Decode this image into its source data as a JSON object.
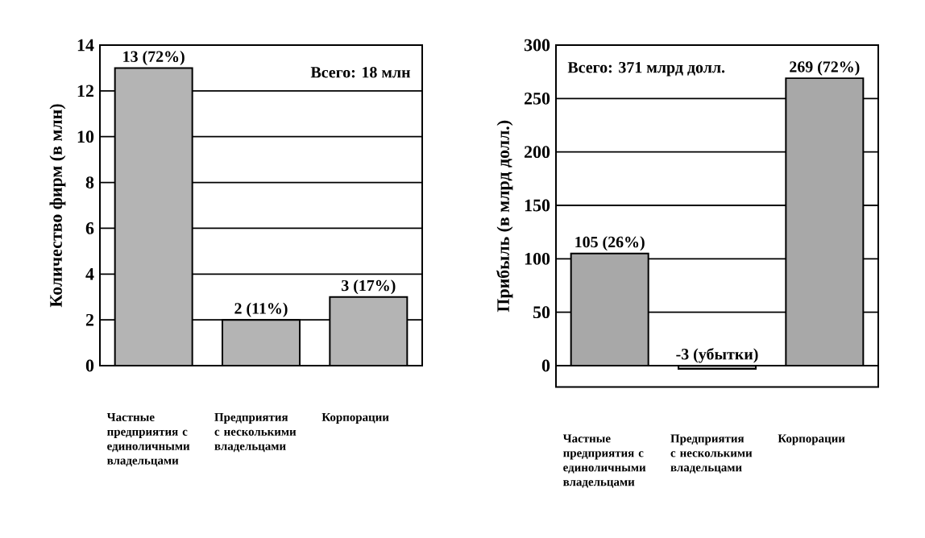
{
  "chart_data": [
    {
      "type": "bar",
      "ylabel": "Количество фирм (в млн)",
      "categories": [
        "Частные предприятия с единоличными владельцами",
        "Предприятия с несколькими владельцами",
        "Корпорации"
      ],
      "values": [
        13,
        2,
        3
      ],
      "value_labels": [
        "13 (72%)",
        "2 (11%)",
        "3 (17%)"
      ],
      "color": "#b4b4b4",
      "ylim": [
        0,
        14
      ],
      "yticks": [
        0,
        2,
        4,
        6,
        8,
        10,
        12,
        14
      ],
      "grid": "y",
      "annotations": [
        "Всего: 18 млн"
      ]
    },
    {
      "type": "bar",
      "ylabel": "Прибыль (в млрд долл.)",
      "categories": [
        "Частные предприятия с единоличными владельцами",
        "Предприятия с несколькими владельцами",
        "Корпорации"
      ],
      "values": [
        105,
        -3,
        269
      ],
      "value_labels": [
        "105 (26%)",
        "-3 (убытки)",
        "269 (72%)"
      ],
      "color": "#a8a8a8",
      "ylim": [
        -20,
        300
      ],
      "yticks": [
        0,
        50,
        100,
        150,
        200,
        250,
        300
      ],
      "grid": "y",
      "annotations": [
        "Всего: 371 млрд долл."
      ]
    }
  ]
}
